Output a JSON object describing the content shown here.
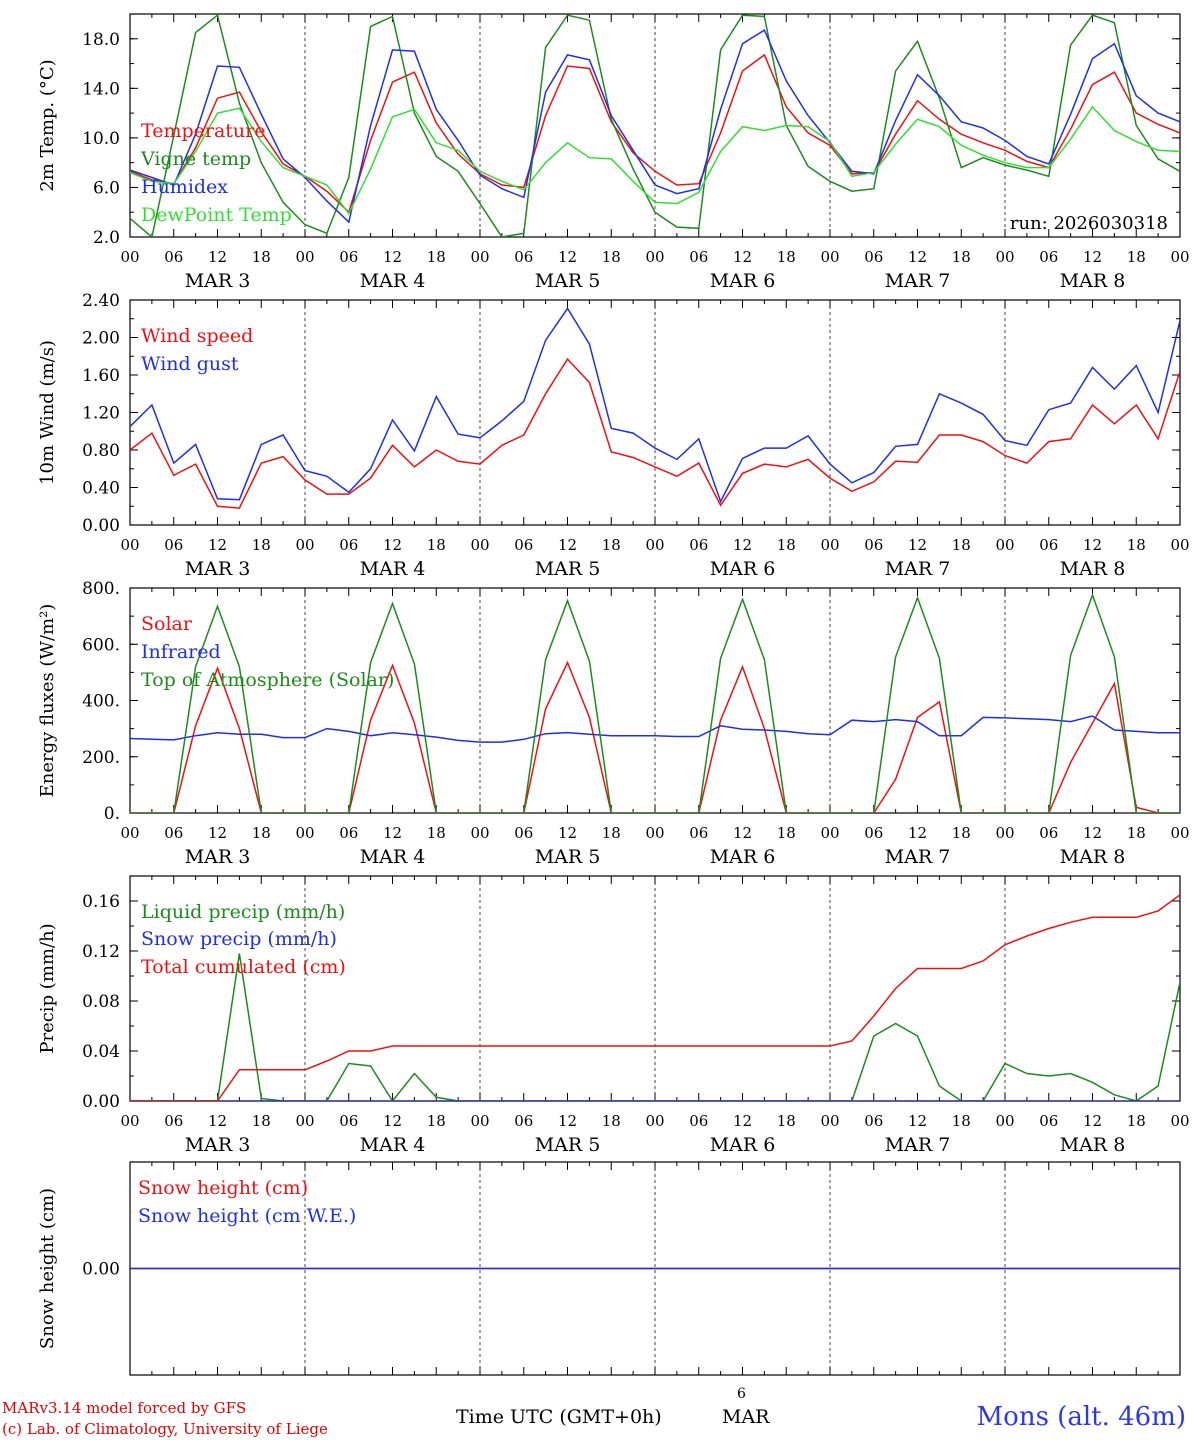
{
  "run_label": "run: 2026030318",
  "footer": {
    "model_line": "MARv3.14 model forced by GFS",
    "credit_line": "(c) Lab. of Climatology, University of Liege",
    "time_label": "Time UTC (GMT+0h)",
    "mid_day": "6",
    "mid_month": "MAR",
    "station": "Mons (alt. 46m)"
  },
  "colors": {
    "red": "#ee1111",
    "blue": "#1f2fe8",
    "green": "#1e8a1e",
    "lightgreen": "#33dd33"
  },
  "chart_data": [
    {
      "type": "line",
      "ylabel": "2m Temp. (°C)",
      "ylim": [
        2,
        20
      ],
      "yticks": [
        2,
        6,
        10,
        14,
        18
      ],
      "ytick_labels": [
        "2.0",
        "6.0",
        "10.0",
        "14.0",
        "18.0"
      ],
      "x_hours": [
        0,
        3,
        6,
        9,
        12,
        15,
        18,
        21,
        24,
        27,
        30,
        33,
        36,
        39,
        42,
        45,
        48,
        51,
        54,
        57,
        60,
        63,
        66,
        69,
        72,
        75,
        78,
        81,
        84,
        87,
        90,
        93,
        96,
        99,
        102,
        105,
        108,
        111,
        114,
        117,
        120,
        123,
        126,
        129,
        132,
        135,
        138,
        141,
        144
      ],
      "x_tick_labels": [
        "00",
        "06",
        "12",
        "18",
        "00",
        "06",
        "12",
        "18",
        "00",
        "06",
        "12",
        "18",
        "00",
        "06",
        "12",
        "18",
        "00",
        "06",
        "12",
        "18",
        "00",
        "06",
        "12",
        "18",
        "00"
      ],
      "day_labels": [
        "MAR 3",
        "MAR 4",
        "MAR 5",
        "MAR 6",
        "MAR 7",
        "MAR 8"
      ],
      "series": [
        {
          "name": "Temperature",
          "color": "red",
          "values": [
            7.3,
            6.6,
            6.3,
            9.2,
            13.2,
            13.7,
            10.5,
            7.9,
            6.9,
            5.7,
            4.0,
            9.8,
            14.5,
            15.3,
            11.2,
            8.7,
            7.1,
            6.2,
            6.0,
            11.8,
            15.8,
            15.6,
            11.3,
            8.8,
            7.3,
            6.2,
            6.3,
            10.4,
            15.4,
            16.7,
            12.5,
            10.4,
            9.4,
            7.1,
            7.2,
            10.3,
            13.0,
            11.5,
            10.3,
            9.6,
            9.0,
            8.1,
            7.6,
            10.7,
            14.3,
            15.3,
            12.0,
            11.1,
            10.4
          ]
        },
        {
          "name": "Vigne temp",
          "color": "green",
          "values": [
            3.5,
            2.0,
            10.2,
            18.5,
            19.9,
            12.8,
            8.0,
            4.8,
            3.0,
            2.3,
            6.8,
            19.0,
            19.8,
            12.0,
            8.5,
            7.3,
            4.7,
            2.0,
            2.3,
            17.3,
            19.9,
            19.5,
            11.5,
            7.5,
            4.0,
            2.8,
            2.7,
            17.1,
            19.9,
            19.8,
            11.0,
            7.7,
            6.5,
            5.7,
            5.9,
            15.4,
            17.8,
            13.2,
            7.6,
            8.4,
            7.8,
            7.4,
            6.9,
            17.5,
            19.9,
            19.3,
            11.0,
            8.3,
            7.3
          ]
        },
        {
          "name": "Humidex",
          "color": "blue",
          "values": [
            7.4,
            6.8,
            6.2,
            10.3,
            15.8,
            15.7,
            11.9,
            8.3,
            6.8,
            4.9,
            3.2,
            11.0,
            17.1,
            17.0,
            12.3,
            9.8,
            7.0,
            5.9,
            5.2,
            13.7,
            16.7,
            16.3,
            11.8,
            9.0,
            6.2,
            5.5,
            5.9,
            12.3,
            17.6,
            18.7,
            14.6,
            11.8,
            9.6,
            7.3,
            7.1,
            11.4,
            15.1,
            13.4,
            11.3,
            10.8,
            9.8,
            8.5,
            7.9,
            11.9,
            16.4,
            17.6,
            13.4,
            12.0,
            11.3
          ]
        },
        {
          "name": "DewPoint Temp",
          "color": "lightgreen",
          "values": [
            7.2,
            6.5,
            6.3,
            8.9,
            12.0,
            12.4,
            9.7,
            7.6,
            6.9,
            6.2,
            3.9,
            7.5,
            11.7,
            12.3,
            9.6,
            9.0,
            7.3,
            6.5,
            5.8,
            8.0,
            9.6,
            8.4,
            8.3,
            6.5,
            4.8,
            4.7,
            5.6,
            8.9,
            10.9,
            10.6,
            11.0,
            10.9,
            9.7,
            6.9,
            7.2,
            9.5,
            11.5,
            10.9,
            9.4,
            8.6,
            8.0,
            7.6,
            7.6,
            9.9,
            12.5,
            10.6,
            9.7,
            9.0,
            8.9
          ]
        }
      ]
    },
    {
      "type": "line",
      "ylabel": "10m Wind (m/s)",
      "ylim": [
        0,
        2.4
      ],
      "yticks": [
        0,
        0.4,
        0.8,
        1.2,
        1.6,
        2.0,
        2.4
      ],
      "ytick_labels": [
        "0.00",
        "0.40",
        "0.80",
        "1.20",
        "1.60",
        "2.00",
        "2.40"
      ],
      "x_hours": [
        0,
        3,
        6,
        9,
        12,
        15,
        18,
        21,
        24,
        27,
        30,
        33,
        36,
        39,
        42,
        45,
        48,
        51,
        54,
        57,
        60,
        63,
        66,
        69,
        72,
        75,
        78,
        81,
        84,
        87,
        90,
        93,
        96,
        99,
        102,
        105,
        108,
        111,
        114,
        117,
        120,
        123,
        126,
        129,
        132,
        135,
        138,
        141,
        144
      ],
      "x_tick_labels": [
        "00",
        "06",
        "12",
        "18",
        "00",
        "06",
        "12",
        "18",
        "00",
        "06",
        "12",
        "18",
        "00",
        "06",
        "12",
        "18",
        "00",
        "06",
        "12",
        "18",
        "00",
        "06",
        "12",
        "18",
        "00"
      ],
      "day_labels": [
        "MAR 3",
        "MAR 4",
        "MAR 5",
        "MAR 6",
        "MAR 7",
        "MAR 8"
      ],
      "series": [
        {
          "name": "Wind speed",
          "color": "red",
          "values": [
            0.8,
            0.98,
            0.53,
            0.65,
            0.2,
            0.18,
            0.66,
            0.73,
            0.48,
            0.33,
            0.33,
            0.5,
            0.85,
            0.62,
            0.8,
            0.68,
            0.65,
            0.85,
            0.96,
            1.4,
            1.77,
            1.52,
            0.78,
            0.72,
            0.62,
            0.52,
            0.66,
            0.21,
            0.55,
            0.65,
            0.62,
            0.7,
            0.5,
            0.36,
            0.46,
            0.68,
            0.67,
            0.96,
            0.96,
            0.89,
            0.74,
            0.66,
            0.89,
            0.92,
            1.28,
            1.08,
            1.28,
            0.92,
            1.64
          ]
        },
        {
          "name": "Wind gust",
          "color": "blue",
          "values": [
            1.05,
            1.28,
            0.66,
            0.86,
            0.28,
            0.27,
            0.86,
            0.96,
            0.58,
            0.52,
            0.35,
            0.6,
            1.12,
            0.79,
            1.37,
            0.97,
            0.93,
            1.11,
            1.32,
            1.97,
            2.31,
            1.93,
            1.03,
            0.98,
            0.82,
            0.7,
            0.92,
            0.25,
            0.71,
            0.82,
            0.82,
            0.95,
            0.65,
            0.45,
            0.56,
            0.84,
            0.86,
            1.4,
            1.3,
            1.18,
            0.9,
            0.85,
            1.23,
            1.3,
            1.68,
            1.45,
            1.7,
            1.2,
            2.18
          ]
        }
      ]
    },
    {
      "type": "line",
      "ylabel": "Energy fluxes (W/m²)",
      "ylim": [
        0,
        800
      ],
      "yticks": [
        0,
        200,
        400,
        600,
        800
      ],
      "ytick_labels": [
        "0.",
        "200.",
        "400.",
        "600.",
        "800."
      ],
      "x_hours": [
        0,
        3,
        6,
        9,
        12,
        15,
        18,
        21,
        24,
        27,
        30,
        33,
        36,
        39,
        42,
        45,
        48,
        51,
        54,
        57,
        60,
        63,
        66,
        69,
        72,
        75,
        78,
        81,
        84,
        87,
        90,
        93,
        96,
        99,
        102,
        105,
        108,
        111,
        114,
        117,
        120,
        123,
        126,
        129,
        132,
        135,
        138,
        141,
        144
      ],
      "x_tick_labels": [
        "00",
        "06",
        "12",
        "18",
        "00",
        "06",
        "12",
        "18",
        "00",
        "06",
        "12",
        "18",
        "00",
        "06",
        "12",
        "18",
        "00",
        "06",
        "12",
        "18",
        "00",
        "06",
        "12",
        "18",
        "00"
      ],
      "day_labels": [
        "MAR 3",
        "MAR 4",
        "MAR 5",
        "MAR 6",
        "MAR 7",
        "MAR 8"
      ],
      "series": [
        {
          "name": "Solar",
          "color": "red",
          "values": [
            0,
            0,
            0,
            310,
            515,
            300,
            0,
            0,
            0,
            0,
            0,
            330,
            525,
            320,
            0,
            0,
            0,
            0,
            0,
            370,
            535,
            340,
            0,
            0,
            0,
            0,
            0,
            330,
            520,
            300,
            0,
            0,
            0,
            0,
            0,
            120,
            340,
            395,
            0,
            0,
            0,
            0,
            0,
            180,
            320,
            460,
            20,
            0,
            0
          ]
        },
        {
          "name": "Infrared",
          "color": "blue",
          "values": [
            265,
            262,
            260,
            275,
            285,
            280,
            280,
            268,
            268,
            300,
            290,
            275,
            285,
            278,
            270,
            258,
            252,
            252,
            262,
            282,
            286,
            280,
            275,
            275,
            275,
            272,
            272,
            310,
            298,
            295,
            290,
            282,
            278,
            330,
            325,
            332,
            325,
            275,
            275,
            340,
            338,
            335,
            332,
            325,
            345,
            295,
            290,
            285,
            285
          ]
        },
        {
          "name": "Top of Atmosphere (Solar)",
          "color": "green",
          "values": [
            0,
            0,
            0,
            520,
            735,
            520,
            0,
            0,
            0,
            0,
            0,
            535,
            745,
            530,
            0,
            0,
            0,
            0,
            0,
            545,
            755,
            540,
            0,
            0,
            0,
            0,
            0,
            550,
            760,
            545,
            0,
            0,
            0,
            0,
            0,
            555,
            765,
            550,
            0,
            0,
            0,
            0,
            0,
            560,
            775,
            555,
            0,
            0,
            0
          ]
        }
      ]
    },
    {
      "type": "line",
      "ylabel": "Precip (mm/h)",
      "ylim": [
        0,
        0.18
      ],
      "yticks": [
        0,
        0.04,
        0.08,
        0.12,
        0.16
      ],
      "ytick_labels": [
        "0.00",
        "0.04",
        "0.08",
        "0.12",
        "0.16"
      ],
      "x_hours": [
        0,
        3,
        6,
        9,
        12,
        15,
        18,
        21,
        24,
        27,
        30,
        33,
        36,
        39,
        42,
        45,
        48,
        51,
        54,
        57,
        60,
        63,
        66,
        69,
        72,
        75,
        78,
        81,
        84,
        87,
        90,
        93,
        96,
        99,
        102,
        105,
        108,
        111,
        114,
        117,
        120,
        123,
        126,
        129,
        132,
        135,
        138,
        141,
        144
      ],
      "x_tick_labels": [
        "00",
        "06",
        "12",
        "18",
        "00",
        "06",
        "12",
        "18",
        "00",
        "06",
        "12",
        "18",
        "00",
        "06",
        "12",
        "18",
        "00",
        "06",
        "12",
        "18",
        "00",
        "06",
        "12",
        "18",
        "00"
      ],
      "day_labels": [
        "MAR 3",
        "MAR 4",
        "MAR 5",
        "MAR 6",
        "MAR 7",
        "MAR 8"
      ],
      "series": [
        {
          "name": "Liquid precip (mm/h)",
          "color": "green",
          "values": [
            0,
            0,
            0,
            0,
            0,
            0.118,
            0.002,
            0,
            0,
            0,
            0.03,
            0.028,
            0,
            0.022,
            0.003,
            0,
            0,
            0,
            0,
            0,
            0,
            0,
            0,
            0,
            0,
            0,
            0,
            0,
            0,
            0,
            0,
            0,
            0,
            0,
            0.052,
            0.062,
            0.052,
            0.012,
            0,
            0,
            0.03,
            0.022,
            0.02,
            0.022,
            0.015,
            0.005,
            0,
            0.012,
            0.095
          ]
        },
        {
          "name": "Snow precip (mm/h)",
          "color": "blue",
          "values": [
            0,
            0,
            0,
            0,
            0,
            0,
            0,
            0,
            0,
            0,
            0,
            0,
            0,
            0,
            0,
            0,
            0,
            0,
            0,
            0,
            0,
            0,
            0,
            0,
            0,
            0,
            0,
            0,
            0,
            0,
            0,
            0,
            0,
            0,
            0,
            0,
            0,
            0,
            0,
            0,
            0,
            0,
            0,
            0,
            0,
            0,
            0,
            0,
            0
          ]
        },
        {
          "name": "Total cumulated (cm)",
          "color": "red",
          "values": [
            0,
            0,
            0,
            0,
            0,
            0.025,
            0.025,
            0.025,
            0.025,
            0.032,
            0.04,
            0.04,
            0.044,
            0.044,
            0.044,
            0.044,
            0.044,
            0.044,
            0.044,
            0.044,
            0.044,
            0.044,
            0.044,
            0.044,
            0.044,
            0.044,
            0.044,
            0.044,
            0.044,
            0.044,
            0.044,
            0.044,
            0.044,
            0.048,
            0.068,
            0.09,
            0.106,
            0.106,
            0.106,
            0.112,
            0.125,
            0.132,
            0.138,
            0.143,
            0.147,
            0.147,
            0.147,
            0.152,
            0.165
          ]
        }
      ]
    },
    {
      "type": "line",
      "ylabel": "Snow height (cm)",
      "ylim": [
        -1,
        1
      ],
      "yticks": [
        0
      ],
      "ytick_labels": [
        "0.00"
      ],
      "x_hours": [
        0,
        144
      ],
      "x_tick_labels": [],
      "day_labels": [],
      "series": [
        {
          "name": "Snow height (cm)",
          "color": "red",
          "values": [
            0,
            0
          ]
        },
        {
          "name": "Snow height (cm W.E.)",
          "color": "blue",
          "values": [
            0,
            0
          ]
        }
      ]
    }
  ]
}
